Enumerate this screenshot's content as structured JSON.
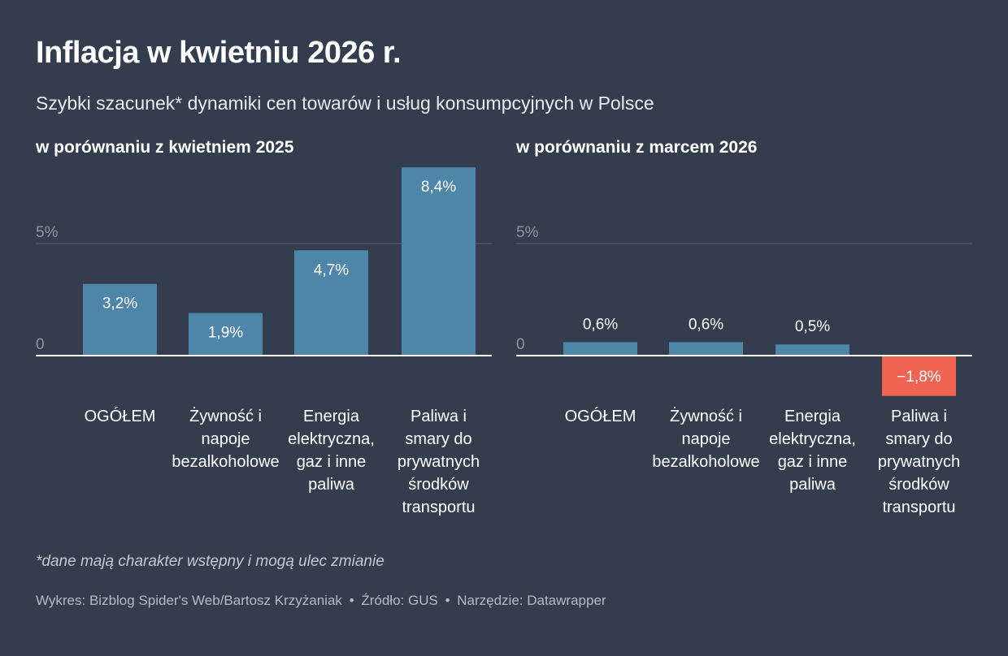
{
  "title": "Inflacja w kwietniu 2026 r.",
  "subtitle": "Szybki szacunek* dynamiki cen towarów i usług konsumpcyjnych w Polsce",
  "colors": {
    "background": "#333d4e",
    "positive": "#4e86aa",
    "negative": "#f06452"
  },
  "chart_data": [
    {
      "type": "bar",
      "title": "w porównaniu z kwietniem 2025",
      "categories": [
        "OGÓŁEM",
        "Żywność i napoje bezalkoholowe",
        "Energia elektryczna, gaz i inne paliwa",
        "Paliwa i smary do prywatnych środków transportu"
      ],
      "category_lines": [
        [
          "OGÓŁEM"
        ],
        [
          "Żywność i",
          "napoje",
          "bezalkoholowe"
        ],
        [
          "Energia",
          "elektryczna,",
          "gaz i inne",
          "paliwa"
        ],
        [
          "Paliwa i",
          "smary do",
          "prywatnych",
          "środków",
          "transportu"
        ]
      ],
      "values": [
        3.2,
        1.9,
        4.7,
        8.4
      ],
      "labels": [
        "3,2%",
        "1,9%",
        "4,7%",
        "8,4%"
      ],
      "yticks": [
        {
          "value": 0,
          "label": "0"
        },
        {
          "value": 5,
          "label": "5%"
        }
      ],
      "unit": "%"
    },
    {
      "type": "bar",
      "title": "w porównaniu z marcem 2026",
      "categories": [
        "OGÓŁEM",
        "Żywność i napoje bezalkoholowe",
        "Energia elektryczna, gaz i inne paliwa",
        "Paliwa i smary do prywatnych środków transportu"
      ],
      "category_lines": [
        [
          "OGÓŁEM"
        ],
        [
          "Żywność i",
          "napoje",
          "bezalkoholowe"
        ],
        [
          "Energia",
          "elektryczna,",
          "gaz i inne",
          "paliwa"
        ],
        [
          "Paliwa i",
          "smary do",
          "prywatnych",
          "środków",
          "transportu"
        ]
      ],
      "values": [
        0.6,
        0.6,
        0.5,
        -1.8
      ],
      "labels": [
        "0,6%",
        "0,6%",
        "0,5%",
        "−1,8%"
      ],
      "yticks": [
        {
          "value": 0,
          "label": "0"
        },
        {
          "value": 5,
          "label": "5%"
        }
      ],
      "unit": "%"
    }
  ],
  "note": "*dane mają charakter wstępny i mogą ulec zmianie",
  "credits": [
    "Wykres: Bizblog Spider's Web/Bartosz Krzyżaniak",
    "•",
    "Źródło: GUS",
    "•",
    "Narzędzie: Datawrapper"
  ]
}
